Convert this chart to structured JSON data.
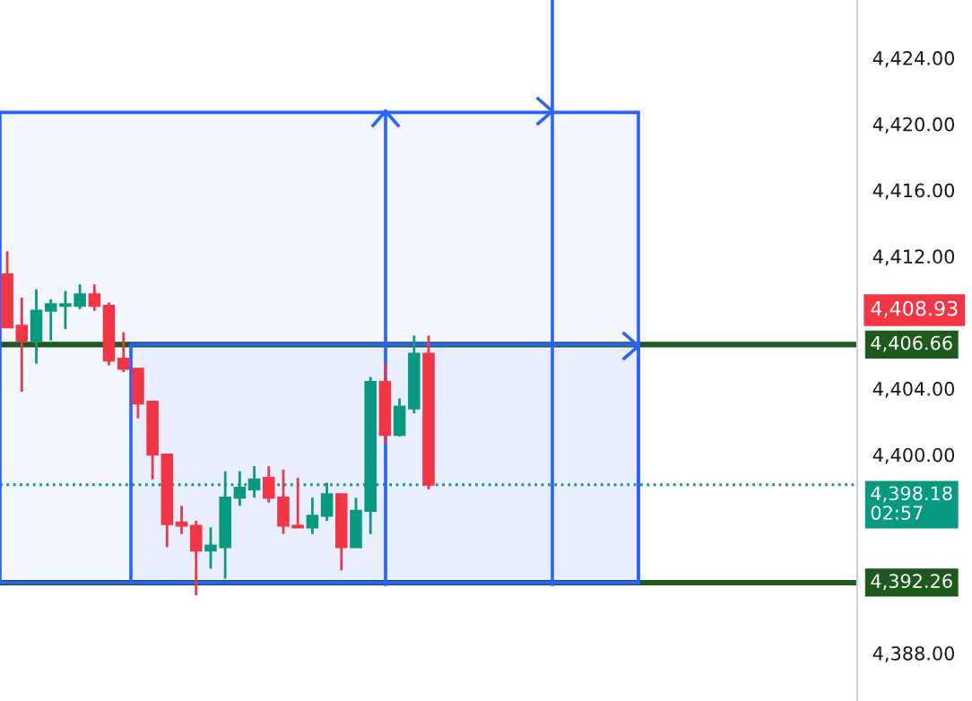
{
  "chart_data": {
    "type": "candlestick",
    "categories": [
      null,
      null,
      null,
      null,
      null,
      null,
      null,
      null,
      null,
      null,
      null,
      null,
      null,
      null,
      null,
      null,
      null,
      null,
      null,
      null,
      null,
      null,
      null,
      null,
      null,
      null,
      null,
      null,
      null,
      null,
      null,
      null,
      null,
      null,
      null,
      null,
      null,
      null,
      null,
      null,
      null,
      null,
      null,
      null,
      null,
      null,
      null,
      null,
      null,
      null,
      null,
      null,
      null,
      null,
      null,
      null,
      null,
      null,
      null
    ],
    "ohlc": [
      [
        4410.9,
        4412.3,
        4407.7,
        4407.7
      ],
      [
        4407.8,
        4409.5,
        4403.8,
        4406.9
      ],
      [
        4406.9,
        4410.0,
        4405.5,
        4408.7
      ],
      [
        4408.7,
        4409.4,
        4406.9,
        4409.1
      ],
      [
        4409.0,
        4409.9,
        4407.6,
        4409.1
      ],
      [
        4409.0,
        4410.3,
        4408.8,
        4409.7
      ],
      [
        4409.7,
        4410.3,
        4408.7,
        4409.0
      ],
      [
        4409.0,
        4409.2,
        4405.4,
        4405.7
      ],
      [
        4405.8,
        4407.4,
        4405.0,
        4405.2
      ],
      [
        4405.2,
        4405.2,
        4402.2,
        4403.1
      ],
      [
        4403.2,
        4403.2,
        4398.5,
        4400.0
      ],
      [
        4400.0,
        4400.0,
        4394.4,
        4395.8
      ],
      [
        4395.9,
        4396.9,
        4395.2,
        4395.7
      ],
      [
        4395.7,
        4396.0,
        4391.5,
        4394.2
      ],
      [
        4394.2,
        4395.6,
        4393.1,
        4394.5
      ],
      [
        4394.4,
        4399.0,
        4392.5,
        4397.4
      ],
      [
        4397.4,
        4399.0,
        4396.9,
        4398.0
      ],
      [
        4397.9,
        4399.3,
        4397.4,
        4398.5
      ],
      [
        4398.6,
        4399.3,
        4397.1,
        4397.4
      ],
      [
        4397.4,
        4399.1,
        4395.2,
        4395.7
      ],
      [
        4395.7,
        4398.6,
        4395.6,
        4395.6
      ],
      [
        4395.6,
        4397.4,
        4395.2,
        4396.3
      ],
      [
        4396.3,
        4398.3,
        4396.0,
        4397.6
      ],
      [
        4397.6,
        4397.6,
        4393.0,
        4394.4
      ],
      [
        4394.4,
        4397.4,
        4394.4,
        4396.6
      ],
      [
        4396.6,
        4404.7,
        4395.2,
        4404.4
      ],
      [
        4404.4,
        4405.5,
        4400.7,
        4401.2
      ],
      [
        4401.2,
        4403.4,
        4401.1,
        4402.9
      ],
      [
        4402.8,
        4407.2,
        4402.5,
        4406.1
      ],
      [
        4406.1,
        4407.2,
        4397.9,
        4398.18
      ],
      null,
      null,
      null,
      null,
      null,
      null,
      null,
      null,
      null,
      null,
      null,
      null,
      null,
      null,
      null,
      null,
      null,
      null,
      null,
      null,
      null,
      null,
      null,
      null,
      null,
      null,
      null,
      null,
      null
    ],
    "ylim": [
      4385.1,
      4427.5
    ],
    "yticks": [
      {
        "value": 4388,
        "label": "4,388.00"
      },
      {
        "value": 4400,
        "label": "4,400.00"
      },
      {
        "value": 4404,
        "label": "4,404.00"
      },
      {
        "value": 4412,
        "label": "4,412.00"
      },
      {
        "value": 4416,
        "label": "4,416.00"
      },
      {
        "value": 4420,
        "label": "4,420.00"
      },
      {
        "value": 4424,
        "label": "4,424.00"
      }
    ],
    "tick_labels": "y",
    "grid": false,
    "ref_lines": [
      {
        "axis": "y",
        "value": 4406.66,
        "label": "4,406.66",
        "color": "#1e5a1e",
        "line_style": "solid"
      },
      {
        "axis": "y",
        "value": 4392.26,
        "label": "4,392.26",
        "color": "#1e5a1e",
        "line_style": "solid"
      },
      {
        "axis": "y",
        "value": 4398.18,
        "label": "4,398.18\n02:57",
        "color": "#089981",
        "line_style": "dotted"
      }
    ],
    "bands": [
      {
        "axis": "y",
        "from": 4392.26,
        "to": 4420.7,
        "color": "#2962ff"
      },
      {
        "axis": "y",
        "from": 4392.26,
        "to": 4406.66,
        "color": "#2962ff"
      }
    ],
    "annotations": [
      "4,408.93"
    ]
  }
}
